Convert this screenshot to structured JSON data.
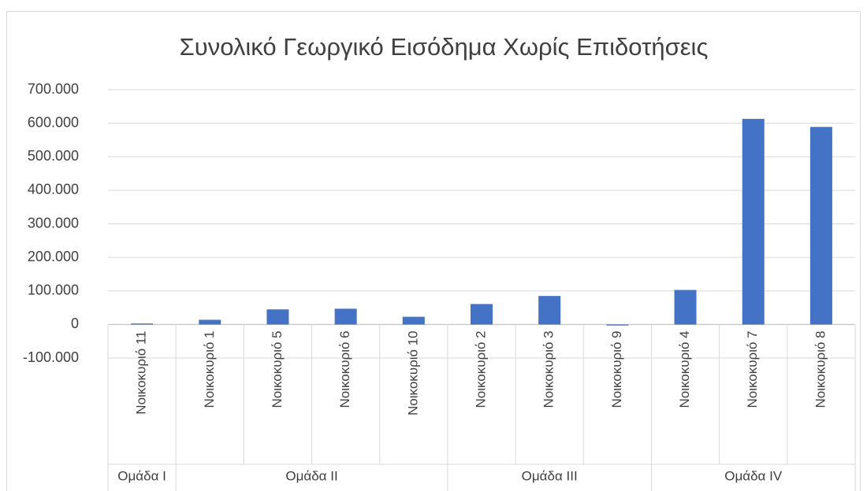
{
  "chart_data": {
    "type": "bar",
    "title": "Συνολικό Γεωργικό Εισόδημα Χωρίς Επιδοτήσεις",
    "groups": [
      {
        "name": "Ομάδα I",
        "categories": [
          "Νοικοκυριό 11"
        ]
      },
      {
        "name": "Ομάδα II",
        "categories": [
          "Νοικοκυριό 1",
          "Νοικοκυριό 5",
          "Νοικοκυριό 6",
          "Νοικοκυριό 10"
        ]
      },
      {
        "name": "Ομάδα III",
        "categories": [
          "Νοικοκυριό 2",
          "Νοικοκυριό 3",
          "Νοικοκυριό 9"
        ]
      },
      {
        "name": "Ομάδα IV",
        "categories": [
          "Νοικοκυριό 4",
          "Νοικοκυριό 7",
          "Νοικοκυριό 8"
        ]
      }
    ],
    "values": [
      3000,
      14000,
      45000,
      47000,
      23000,
      61000,
      85000,
      -3000,
      103000,
      613000,
      589000
    ],
    "color": "#4472c4",
    "ylim": [
      -100000,
      700000
    ],
    "yticks": [
      {
        "value": -100000,
        "label": "-100.000"
      },
      0,
      {
        "value": 100000,
        "label": "100.000"
      },
      {
        "value": 200000,
        "label": "200.000"
      },
      {
        "value": 300000,
        "label": "300.000"
      },
      {
        "value": 400000,
        "label": "400.000"
      },
      {
        "value": 500000,
        "label": "500.000"
      },
      {
        "value": 600000,
        "label": "600.000"
      },
      {
        "value": 700000,
        "label": "700.000"
      }
    ],
    "grid": true
  }
}
